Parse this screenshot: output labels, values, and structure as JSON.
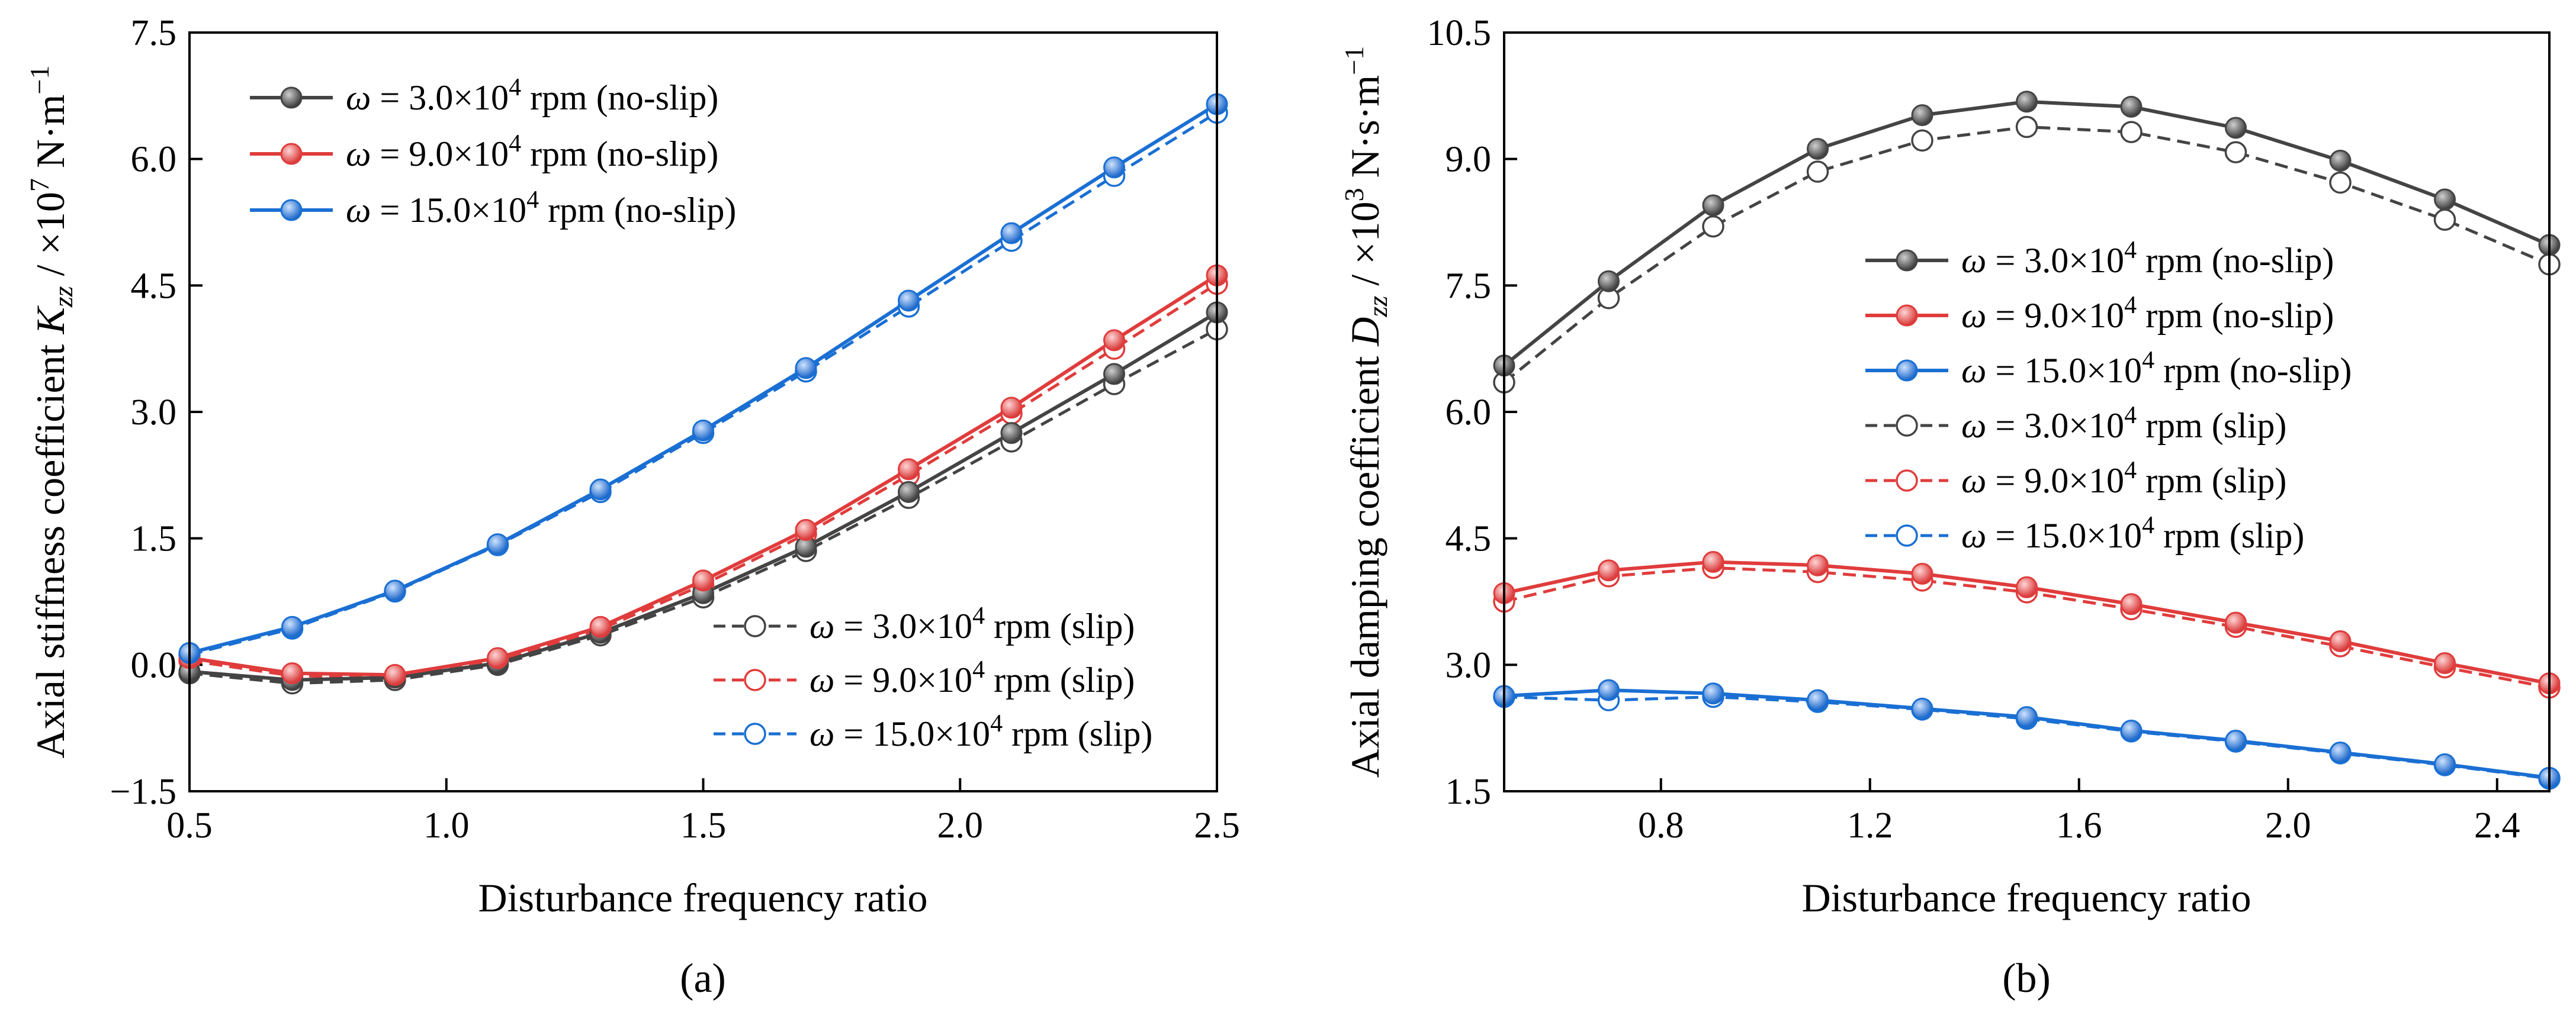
{
  "colors": {
    "black": "#444444",
    "red": "#e03c3c",
    "blue": "#1a6fd3"
  },
  "panel_labels": [
    "(a)",
    "(b)"
  ],
  "legend": {
    "omega": "ω",
    "eq": " = ",
    "times_ten": "×10",
    "exp": "4",
    "rpm": " rpm ",
    "entries": [
      {
        "num": "3.0",
        "cond": "(no-slip)"
      },
      {
        "num": "9.0",
        "cond": "(no-slip)"
      },
      {
        "num": "15.0",
        "cond": "(no-slip)"
      },
      {
        "num": "3.0",
        "cond": "(slip)"
      },
      {
        "num": "9.0",
        "cond": "(slip)"
      },
      {
        "num": "15.0",
        "cond": "(slip)"
      }
    ]
  },
  "chart_data": [
    {
      "type": "line",
      "panel": "(a)",
      "xlabel": "Disturbance frequency ratio",
      "ylabel": {
        "main": "Axial stiffness coefficient ",
        "sym": "K",
        "sub": "zz",
        "unit": " / ×10",
        "exp": "7",
        "unit2": " N·m",
        "exp2": "−1"
      },
      "xlim": [
        0.5,
        2.5
      ],
      "ylim": [
        -1.5,
        7.5
      ],
      "xticks": [
        "0.5",
        "1.0",
        "1.5",
        "2.0",
        "2.5"
      ],
      "yticks": [
        "−1.5",
        "0.0",
        "1.5",
        "3.0",
        "4.5",
        "6.0",
        "7.5"
      ],
      "x": [
        0.5,
        0.7,
        0.9,
        1.1,
        1.3,
        1.5,
        1.7,
        1.9,
        2.1,
        2.3,
        2.5
      ],
      "series": [
        {
          "name": "ω = 3.0×10⁴ rpm (no-slip)",
          "color": "black",
          "style": "solid",
          "values": [
            -0.08,
            -0.18,
            -0.15,
            0.02,
            0.38,
            0.85,
            1.4,
            2.05,
            2.75,
            3.45,
            4.18
          ]
        },
        {
          "name": "ω = 9.0×10⁴ rpm (no-slip)",
          "color": "red",
          "style": "solid",
          "values": [
            0.08,
            -0.1,
            -0.12,
            0.08,
            0.45,
            1.0,
            1.6,
            2.32,
            3.05,
            3.85,
            4.62
          ]
        },
        {
          "name": "ω = 15.0×10⁴ rpm (no-slip)",
          "color": "blue",
          "style": "solid",
          "values": [
            0.14,
            0.45,
            0.88,
            1.43,
            2.08,
            2.78,
            3.52,
            4.32,
            5.12,
            5.9,
            6.65
          ]
        },
        {
          "name": "ω = 3.0×10⁴ rpm (slip)",
          "color": "black",
          "style": "dashed",
          "values": [
            -0.1,
            -0.22,
            -0.18,
            0.0,
            0.35,
            0.8,
            1.35,
            1.98,
            2.65,
            3.33,
            3.98
          ]
        },
        {
          "name": "ω = 9.0×10⁴ rpm (slip)",
          "color": "red",
          "style": "dashed",
          "values": [
            0.05,
            -0.13,
            -0.15,
            0.05,
            0.42,
            0.95,
            1.55,
            2.25,
            2.98,
            3.75,
            4.52
          ]
        },
        {
          "name": "ω = 15.0×10⁴ rpm (slip)",
          "color": "blue",
          "style": "dashed",
          "values": [
            0.12,
            0.43,
            0.87,
            1.42,
            2.05,
            2.75,
            3.48,
            4.25,
            5.03,
            5.8,
            6.55
          ]
        }
      ]
    },
    {
      "type": "line",
      "panel": "(b)",
      "xlabel": "Disturbance frequency ratio",
      "ylabel": {
        "main": "Axial damping coefficient ",
        "sym": "D",
        "sub": "zz",
        "unit": " / ×10",
        "exp": "3",
        "unit2": " N·s·m",
        "exp2": "−1"
      },
      "xlim": [
        0.5,
        2.5
      ],
      "ylim": [
        1.5,
        10.5
      ],
      "xticks": [
        "0.8",
        "1.2",
        "1.6",
        "2.0",
        "2.4"
      ],
      "xtick_values": [
        0.8,
        1.2,
        1.6,
        2.0,
        2.4
      ],
      "yticks": [
        "1.5",
        "3.0",
        "4.5",
        "6.0",
        "7.5",
        "9.0",
        "10.5"
      ],
      "x": [
        0.5,
        0.7,
        0.9,
        1.1,
        1.3,
        1.5,
        1.7,
        1.9,
        2.1,
        2.3,
        2.5
      ],
      "series": [
        {
          "name": "ω = 3.0×10⁴ rpm (no-slip)",
          "color": "black",
          "style": "solid",
          "values": [
            6.55,
            7.55,
            8.45,
            9.12,
            9.52,
            9.68,
            9.62,
            9.37,
            8.98,
            8.52,
            7.98
          ]
        },
        {
          "name": "ω = 9.0×10⁴ rpm (no-slip)",
          "color": "red",
          "style": "solid",
          "values": [
            3.85,
            4.12,
            4.22,
            4.18,
            4.08,
            3.92,
            3.72,
            3.5,
            3.28,
            3.02,
            2.78
          ]
        },
        {
          "name": "ω = 15.0×10⁴ rpm (no-slip)",
          "color": "blue",
          "style": "solid",
          "values": [
            2.63,
            2.7,
            2.66,
            2.58,
            2.48,
            2.38,
            2.22,
            2.1,
            1.96,
            1.82,
            1.66
          ]
        },
        {
          "name": "ω = 3.0×10⁴ rpm (slip)",
          "color": "black",
          "style": "dashed",
          "values": [
            6.35,
            7.35,
            8.2,
            8.85,
            9.22,
            9.38,
            9.32,
            9.08,
            8.72,
            8.28,
            7.75
          ]
        },
        {
          "name": "ω = 9.0×10⁴ rpm (slip)",
          "color": "red",
          "style": "dashed",
          "values": [
            3.75,
            4.05,
            4.15,
            4.1,
            4.0,
            3.86,
            3.66,
            3.45,
            3.22,
            2.97,
            2.73
          ]
        },
        {
          "name": "ω = 15.0×10⁴ rpm (slip)",
          "color": "blue",
          "style": "dashed",
          "values": [
            2.62,
            2.58,
            2.62,
            2.56,
            2.47,
            2.36,
            2.21,
            2.09,
            1.95,
            1.81,
            1.65
          ]
        }
      ]
    }
  ]
}
